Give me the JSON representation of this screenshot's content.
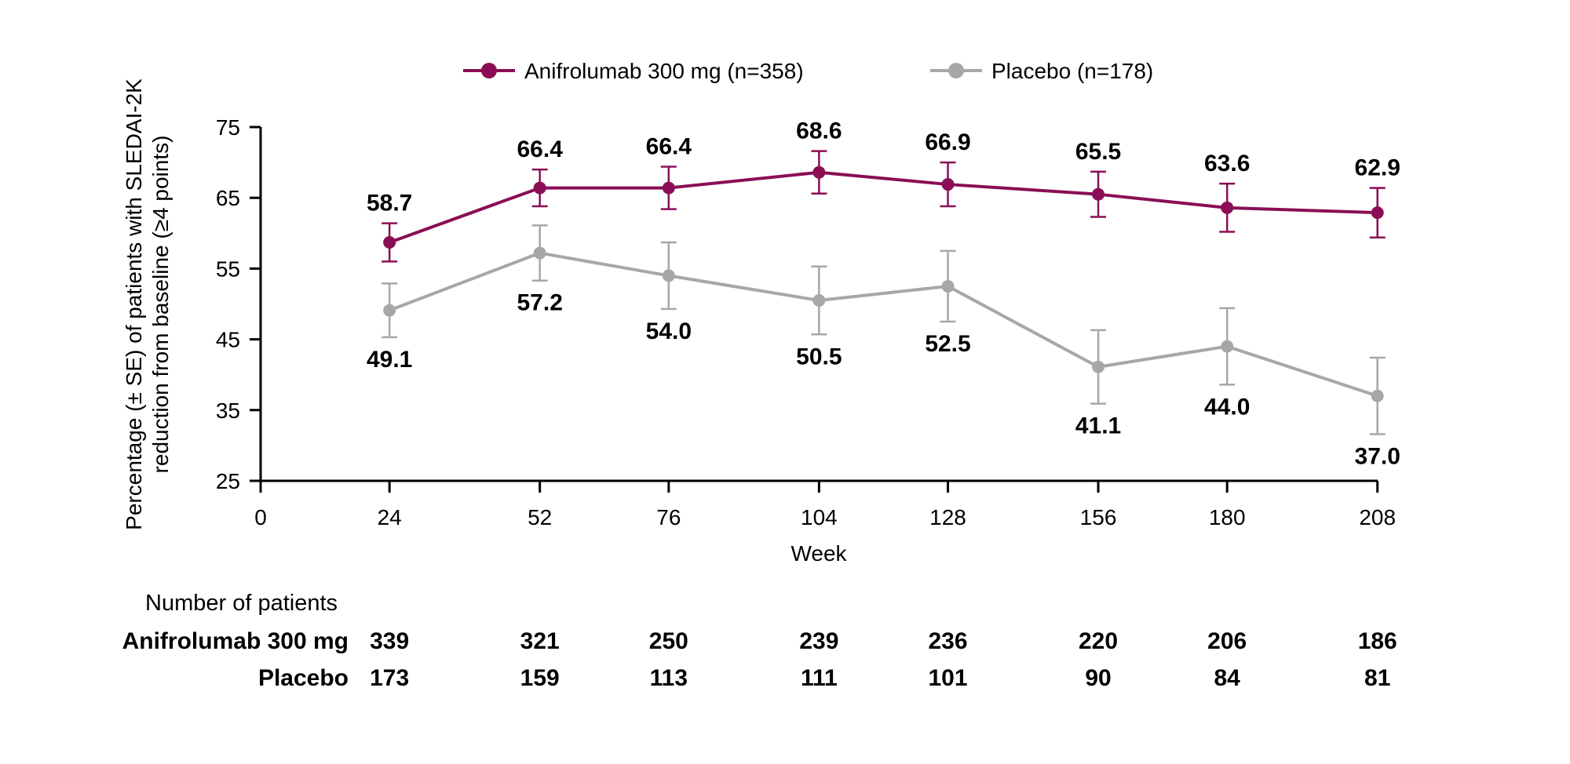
{
  "figure": {
    "background": "#ffffff",
    "axis_color": "#000000"
  },
  "legend": {
    "items": [
      {
        "label": "Anifrolumab 300 mg (n=358)",
        "color": "#8A0E56"
      },
      {
        "label": "Placebo (n=178)",
        "color": "#A7A7AA"
      }
    ]
  },
  "chart_data": {
    "type": "line",
    "x": [
      24,
      52,
      76,
      104,
      128,
      156,
      180,
      208
    ],
    "x_ticks": [
      0,
      24,
      52,
      76,
      104,
      128,
      156,
      180,
      208
    ],
    "y_ticks": [
      25,
      35,
      45,
      55,
      65,
      75
    ],
    "xlim": [
      0,
      208
    ],
    "ylim": [
      25,
      75
    ],
    "grid": false,
    "legend_position": "top-center",
    "xlabel": "Week",
    "ylabel_line1": "Percentage (± SE) of patients with SLEDAI-2K",
    "ylabel_line2": "reduction from baseline (≥4 points)",
    "series": [
      {
        "name": "Anifrolumab 300 mg (n=358)",
        "key": "anifrolumab",
        "color": "#8A0E56",
        "values": [
          58.7,
          66.4,
          66.4,
          68.6,
          66.9,
          65.5,
          63.6,
          62.9
        ],
        "se": [
          2.7,
          2.6,
          3.0,
          3.0,
          3.1,
          3.2,
          3.4,
          3.5
        ],
        "label_position": "above"
      },
      {
        "name": "Placebo (n=178)",
        "key": "placebo",
        "color": "#A7A7AA",
        "values": [
          49.1,
          57.2,
          54.0,
          50.5,
          52.5,
          41.1,
          44.0,
          37.0
        ],
        "se": [
          3.8,
          3.9,
          4.7,
          4.8,
          5.0,
          5.2,
          5.4,
          5.4
        ],
        "label_position": "below"
      }
    ]
  },
  "table": {
    "title": "Number of patients",
    "rows": [
      {
        "label": "Anifrolumab 300 mg",
        "key": "anifrolumab",
        "color": "#8A0E56",
        "values": [
          339,
          321,
          250,
          239,
          236,
          220,
          206,
          186
        ]
      },
      {
        "label": "Placebo",
        "key": "placebo",
        "color": "#A7A7AA",
        "values": [
          173,
          159,
          113,
          111,
          101,
          90,
          84,
          81
        ]
      }
    ]
  }
}
